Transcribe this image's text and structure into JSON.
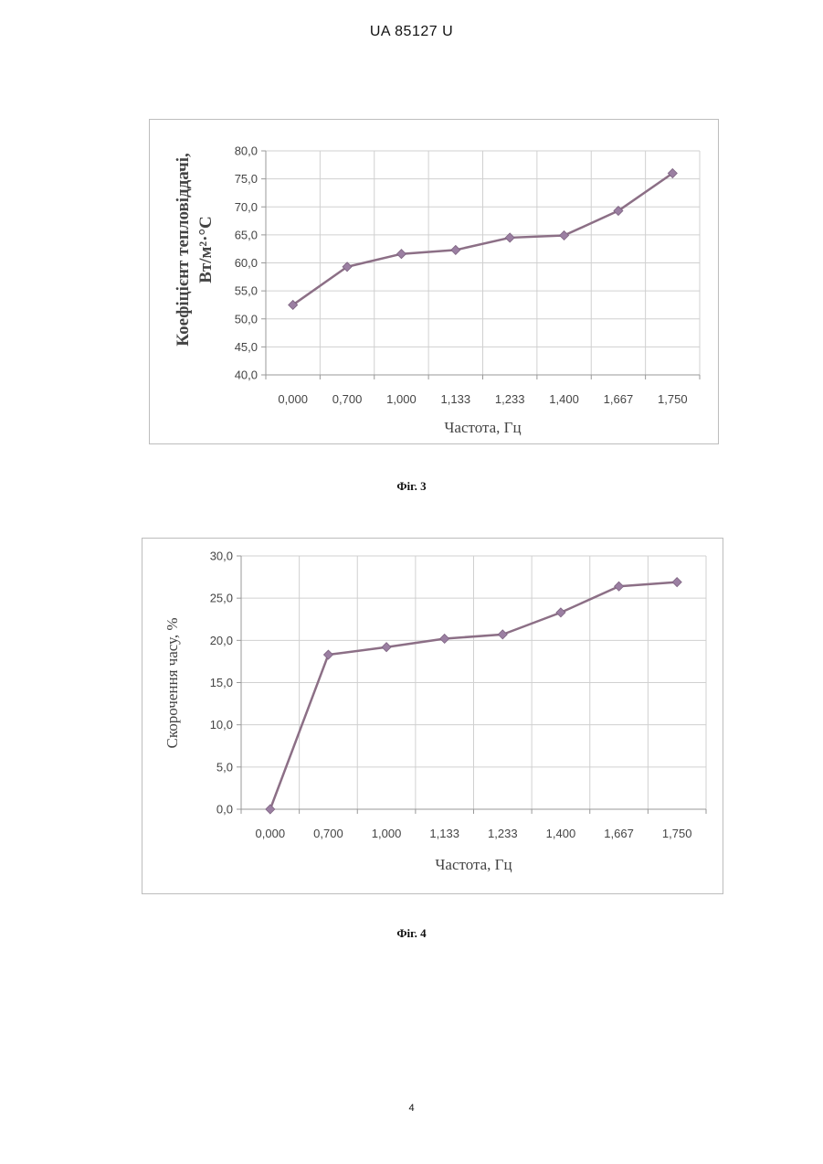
{
  "page": {
    "header": "UA   85127   U",
    "page_number": "4"
  },
  "figures": [
    {
      "caption": "Фіг. 3"
    },
    {
      "caption": "Фіг. 4"
    }
  ],
  "colors": {
    "line": "#8c6f86",
    "marker": "#9b7fa2",
    "grid": "#d0d0d0",
    "frame": "#bdbdbd"
  },
  "chart_data": [
    {
      "type": "line",
      "categories": [
        "0,000",
        "0,700",
        "1,000",
        "1,133",
        "1,233",
        "1,400",
        "1,667",
        "1,750"
      ],
      "values": [
        52.5,
        59.3,
        61.6,
        62.3,
        64.5,
        64.9,
        69.3,
        76.0
      ],
      "yticks": [
        "40,0",
        "45,0",
        "50,0",
        "55,0",
        "60,0",
        "65,0",
        "70,0",
        "75,0",
        "80,0"
      ],
      "ylim": [
        40,
        80
      ],
      "xlabel": "Частота, Гц",
      "ylabel_line1": "Коефіцієнт тепловіддачі,",
      "ylabel_line2": "Вт/м²·°С",
      "grid": true,
      "legend": "none"
    },
    {
      "type": "line",
      "categories": [
        "0,000",
        "0,700",
        "1,000",
        "1,133",
        "1,233",
        "1,400",
        "1,667",
        "1,750"
      ],
      "values": [
        0.0,
        18.3,
        19.2,
        20.2,
        20.7,
        23.3,
        26.4,
        26.9
      ],
      "yticks": [
        "0,0",
        "5,0",
        "10,0",
        "15,0",
        "20,0",
        "25,0",
        "30,0"
      ],
      "ylim": [
        0,
        30
      ],
      "xlabel": "Частота, Гц",
      "ylabel": "Скорочення часу, %",
      "grid": true,
      "legend": "none"
    }
  ]
}
